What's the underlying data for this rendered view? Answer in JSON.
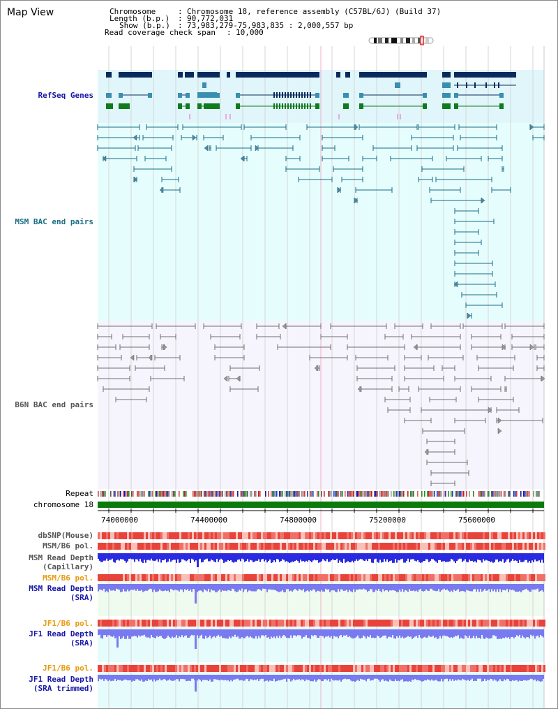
{
  "page": {
    "title": "Map View",
    "colors": {
      "bg_lightblue": "#e0f6fb",
      "bg_cyan": "#e6fdfd",
      "bg_lavender": "#f6f4fc",
      "refseq_dark": "#0a2a5e",
      "refseq_mid": "#3a8fb0",
      "refseq_green": "#0f7a1e",
      "msm_line": "#156a86",
      "b6n_line": "#6e6e6e",
      "chrom_green": "#0a7a0a",
      "snp_red": "#e8433a",
      "depth_blue": "#2a2ae0",
      "sra_blue": "#7a7af0"
    }
  },
  "header": {
    "chromosome_label": "Chromosome",
    "chromosome_value": "Chromosome 18, reference assembly (C57BL/6J) (Build 37)",
    "length_label": "Length (b.p.)",
    "length_value": "90,772,031",
    "show_label": "Show (b.p.)",
    "show_value": "73,983,279-75,983,835 : 2,000,557 bp",
    "coverage_label": "Read coverage check span",
    "coverage_value": "10,000"
  },
  "tracks": {
    "refseq": "RefSeq Genes",
    "msm_bac": "MSM BAC end pairs",
    "b6n_bac": "B6N BAC end pairs",
    "repeat": "Repeat",
    "chromosome": "chromosome 18",
    "dbsnp": "dbSNP(Mouse)",
    "msm_b6_pol_1": "MSM/B6 pol.",
    "msm_read_depth_cap_1": "MSM Read Depth",
    "msm_read_depth_cap_2": "(Capillary)",
    "msm_b6_pol_2": "MSM/B6 pol.",
    "msm_read_depth_sra_1": "MSM Read Depth",
    "msm_read_depth_sra_2": "(SRA)",
    "jf1_b6_pol_1": "JF1/B6 pol.",
    "jf1_read_depth_sra_1": "JF1 Read Depth",
    "jf1_read_depth_sra_2": "(SRA)",
    "jf1_b6_pol_2": "JF1/B6 pol.",
    "jf1_read_depth_trim_1": "JF1 Read Depth",
    "jf1_read_depth_trim_2": "(SRA trimmed)"
  },
  "axis": {
    "ticks": [
      "74000000",
      "74400000",
      "74800000",
      "75200000",
      "75600000"
    ]
  }
}
